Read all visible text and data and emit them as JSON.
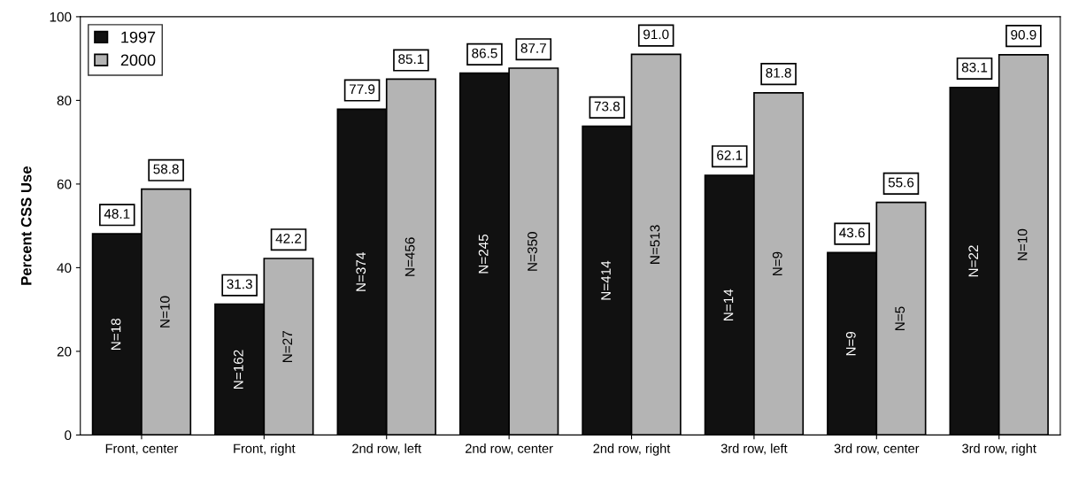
{
  "chart_data": {
    "type": "bar",
    "ylabel": "Percent CSS Use",
    "categories": [
      "Front, center",
      "Front, right",
      "2nd row, left",
      "2nd row, center",
      "2nd row, right",
      "3rd row, left",
      "3rd row, center",
      "3rd row, right"
    ],
    "series": [
      {
        "name": "1997",
        "color": "#111111",
        "values": [
          48.1,
          31.3,
          77.9,
          86.5,
          73.8,
          62.1,
          43.6,
          83.1
        ]
      },
      {
        "name": "2000",
        "color": "#b4b4b4",
        "values": [
          58.8,
          42.2,
          85.1,
          87.7,
          91.0,
          81.8,
          55.6,
          90.9
        ]
      }
    ],
    "value_labels": [
      [
        "48.1",
        "31.3",
        "77.9",
        "86.5",
        "73.8",
        "62.1",
        "43.6",
        "83.1"
      ],
      [
        "58.8",
        "42.2",
        "85.1",
        "87.7",
        "91.0",
        "81.8",
        "55.6",
        "90.9"
      ]
    ],
    "annotations": [
      "N=18",
      "N=10",
      "N=162",
      "N=27",
      "N=374",
      "N=456",
      "N=245",
      "N=350",
      "N=414",
      "N=513",
      "N=14",
      "N=9",
      "N=9",
      "N=5",
      "N=22",
      "N=10"
    ],
    "ylim": [
      0,
      100
    ],
    "yticks": [
      0,
      20,
      40,
      60,
      80,
      100
    ],
    "grid": false,
    "legend": "top left"
  }
}
